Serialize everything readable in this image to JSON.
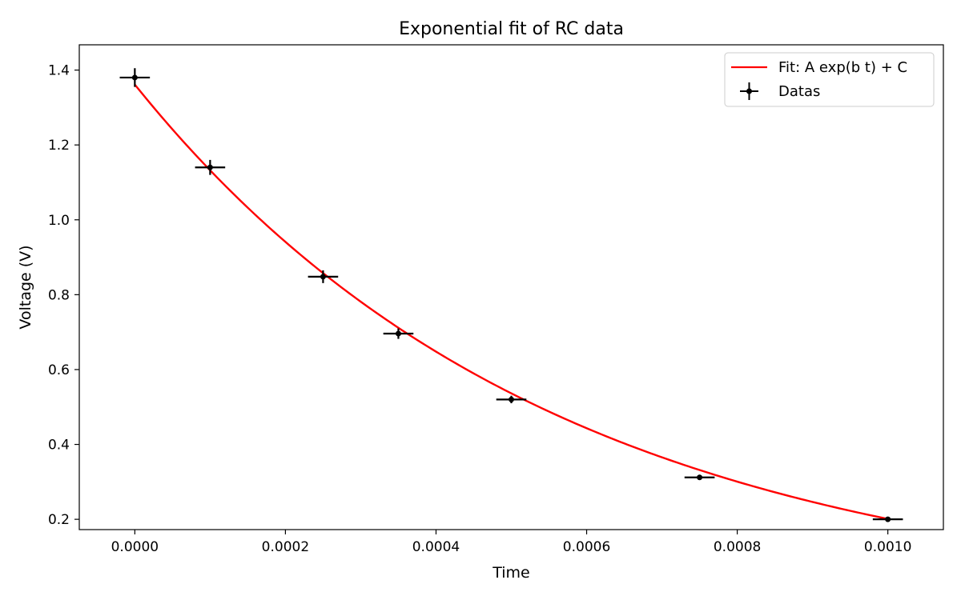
{
  "chart_data": {
    "type": "scatter",
    "title": "Exponential fit of RC data",
    "xlabel": "Time",
    "ylabel": "Voltage (V)",
    "xlim": [
      -7.375e-05,
      0.00107375
    ],
    "ylim": [
      0.1725,
      1.4675
    ],
    "xticks": [
      0.0,
      0.0002,
      0.0004,
      0.0006,
      0.0008,
      0.001
    ],
    "xtick_labels": [
      "0.0000",
      "0.0002",
      "0.0004",
      "0.0006",
      "0.0008",
      "0.0010"
    ],
    "yticks": [
      0.2,
      0.4,
      0.6,
      0.8,
      1.0,
      1.2,
      1.4
    ],
    "ytick_labels": [
      "0.2",
      "0.4",
      "0.6",
      "0.8",
      "1.0",
      "1.2",
      "1.4"
    ],
    "grid": false,
    "legend_position": "top-right",
    "series": [
      {
        "name": "Fit: A exp(b t) + C",
        "kind": "line",
        "color": "#ff0000",
        "model": {
          "A": 1.39,
          "b": -1800,
          "C": -0.0287
        },
        "t_range": [
          0.0,
          0.001
        ]
      },
      {
        "name": "Datas",
        "kind": "errorbar",
        "color": "#000000",
        "x": [
          0.0,
          0.0001,
          0.00025,
          0.00035,
          0.0005,
          0.00075,
          0.001
        ],
        "y": [
          1.38,
          1.14,
          0.848,
          0.696,
          0.52,
          0.312,
          0.2
        ],
        "xerr": [
          2e-05,
          2e-05,
          2e-05,
          2e-05,
          2e-05,
          2e-05,
          2e-05
        ],
        "yerr": [
          0.025,
          0.02,
          0.017,
          0.014,
          0.01,
          0.007,
          0.005
        ]
      }
    ]
  }
}
